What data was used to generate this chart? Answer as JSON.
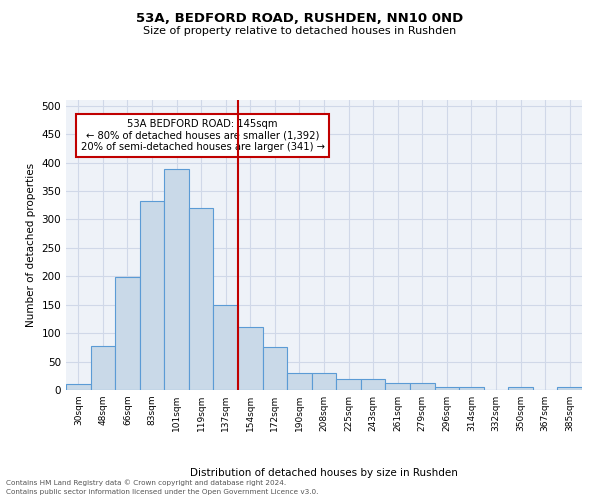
{
  "title": "53A, BEDFORD ROAD, RUSHDEN, NN10 0ND",
  "subtitle": "Size of property relative to detached houses in Rushden",
  "xlabel": "Distribution of detached houses by size in Rushden",
  "ylabel": "Number of detached properties",
  "footnote1": "Contains HM Land Registry data © Crown copyright and database right 2024.",
  "footnote2": "Contains public sector information licensed under the Open Government Licence v3.0.",
  "bar_labels": [
    "30sqm",
    "48sqm",
    "66sqm",
    "83sqm",
    "101sqm",
    "119sqm",
    "137sqm",
    "154sqm",
    "172sqm",
    "190sqm",
    "208sqm",
    "225sqm",
    "243sqm",
    "261sqm",
    "279sqm",
    "296sqm",
    "314sqm",
    "332sqm",
    "350sqm",
    "367sqm",
    "385sqm"
  ],
  "bar_values": [
    10,
    78,
    198,
    333,
    388,
    320,
    150,
    110,
    75,
    30,
    30,
    20,
    20,
    13,
    13,
    6,
    5,
    0,
    5,
    0,
    5
  ],
  "bar_color": "#c9d9e8",
  "bar_edge_color": "#5b9bd5",
  "grid_color": "#d0d8e8",
  "bg_color": "#eef2f8",
  "vline_color": "#c00000",
  "annotation_text": "53A BEDFORD ROAD: 145sqm\n← 80% of detached houses are smaller (1,392)\n20% of semi-detached houses are larger (341) →",
  "annotation_box_color": "#ffffff",
  "annotation_box_edge": "#c00000",
  "ylim": [
    0,
    510
  ],
  "yticks": [
    0,
    50,
    100,
    150,
    200,
    250,
    300,
    350,
    400,
    450,
    500
  ]
}
